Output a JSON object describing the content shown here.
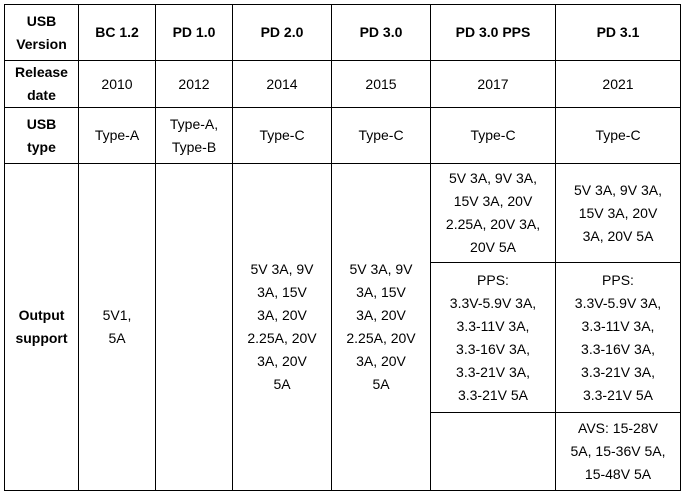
{
  "table": {
    "header": [
      [
        "USB",
        "Version"
      ],
      [
        "BC 1.2"
      ],
      [
        "PD 1.0"
      ],
      [
        "PD 2.0"
      ],
      [
        "PD 3.0"
      ],
      [
        "PD 3.0 PPS"
      ],
      [
        "PD 3.1"
      ]
    ],
    "rows": [
      {
        "label": [
          "Release",
          "date"
        ],
        "cells": [
          [
            "2010"
          ],
          [
            "2012"
          ],
          [
            "2014"
          ],
          [
            "2015"
          ],
          [
            "2017"
          ],
          [
            "2021"
          ]
        ]
      },
      {
        "label": [
          "USB",
          "type"
        ],
        "cells": [
          [
            "Type-A"
          ],
          [
            "Type-A,",
            "Type-B"
          ],
          [
            "Type-C"
          ],
          [
            "Type-C"
          ],
          [
            "Type-C"
          ],
          [
            "Type-C"
          ]
        ]
      }
    ],
    "output": {
      "label": [
        "Output",
        "support"
      ],
      "cells": [
        [
          "5V1,",
          "5A"
        ],
        [
          "5V 3A, 9V",
          "3A, 15V",
          "3A, 20V",
          "2.25A, 20V",
          "3A, 20V",
          "5A"
        ],
        [
          "5V 3A, 9V",
          "3A, 15V",
          "3A, 20V",
          "2.25A, 20V",
          "3A, 20V",
          "5A"
        ]
      ],
      "pd30pps": [
        [
          "5V 3A, 9V 3A,",
          "15V 3A, 20V",
          "2.25A, 20V 3A,",
          "20V 5A"
        ],
        [
          "PPS:",
          "3.3V-5.9V 3A,",
          "3.3-11V 3A,",
          "3.3-16V 3A,",
          "3.3-21V 3A,",
          "3.3-21V 5A"
        ]
      ],
      "pd31": [
        [
          "5V 3A, 9V 3A,",
          "15V 3A, 20V",
          "3A, 20V 5A"
        ],
        [
          "PPS:",
          "3.3V-5.9V 3A,",
          "3.3-11V 3A,",
          "3.3-16V 3A,",
          "3.3-21V 3A,",
          "3.3-21V 5A"
        ],
        [
          "AVS: 15-28V",
          "5A, 15-36V 5A,",
          "15-48V 5A"
        ]
      ]
    }
  }
}
